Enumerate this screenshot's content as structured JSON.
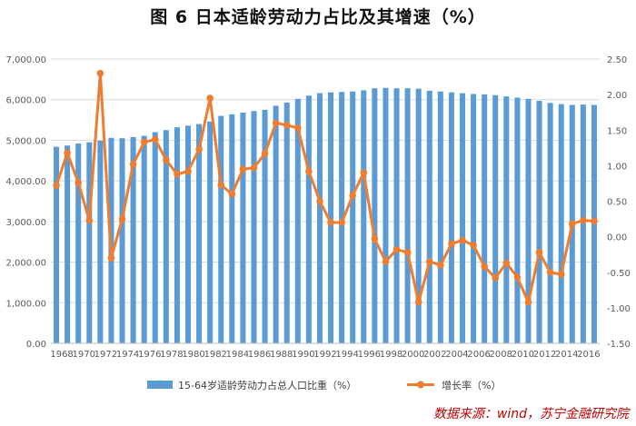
{
  "title": "图 6   日本适龄劳动力占比及其增速（%）",
  "source": "数据来源：wind，苏宁金融研究院",
  "colors": {
    "bar": "#5b9bd5",
    "line": "#ed7d31",
    "grid": "#d9d9d9",
    "axis_text": "#595959"
  },
  "chart_data": {
    "type": "bar+line",
    "x": [
      "1968",
      "1969",
      "1970",
      "1971",
      "1972",
      "1973",
      "1974",
      "1975",
      "1976",
      "1977",
      "1978",
      "1979",
      "1980",
      "1981",
      "1982",
      "1983",
      "1984",
      "1985",
      "1986",
      "1987",
      "1988",
      "1989",
      "1990",
      "1991",
      "1992",
      "1993",
      "1994",
      "1995",
      "1996",
      "1997",
      "1998",
      "1999",
      "2000",
      "2001",
      "2002",
      "2003",
      "2004",
      "2005",
      "2006",
      "2007",
      "2008",
      "2009",
      "2010",
      "2011",
      "2012",
      "2013",
      "2014",
      "2015",
      "2016",
      "2017"
    ],
    "x_tick_labels": [
      "1968",
      "1970",
      "1972",
      "1974",
      "1976",
      "1978",
      "1980",
      "1982",
      "1984",
      "1986",
      "1988",
      "1990",
      "1992",
      "1994",
      "1996",
      "1998",
      "2000",
      "2002",
      "2004",
      "2006",
      "2008",
      "2010",
      "2012",
      "2014",
      "2016"
    ],
    "series": [
      {
        "name": "15-64岁适龄劳动力占总人口比重（%）",
        "type": "bar",
        "axis": "left",
        "values": [
          4840,
          4870,
          4920,
          4950,
          4990,
          5060,
          5050,
          5080,
          5110,
          5200,
          5250,
          5320,
          5360,
          5400,
          5460,
          5600,
          5640,
          5680,
          5720,
          5750,
          5850,
          5930,
          6020,
          6100,
          6160,
          6180,
          6190,
          6200,
          6230,
          6280,
          6290,
          6280,
          6280,
          6270,
          6220,
          6200,
          6180,
          6160,
          6140,
          6130,
          6110,
          6080,
          6050,
          6020,
          5970,
          5920,
          5890,
          5870,
          5880,
          5870
        ]
      },
      {
        "name": "增长率（%）",
        "type": "line",
        "axis": "right",
        "values": [
          0.72,
          1.18,
          0.76,
          0.23,
          2.3,
          -0.3,
          0.25,
          1.02,
          1.33,
          1.37,
          1.08,
          0.88,
          0.92,
          1.23,
          1.95,
          0.73,
          0.6,
          0.95,
          0.97,
          1.17,
          1.6,
          1.57,
          1.53,
          0.92,
          0.5,
          0.2,
          0.2,
          0.58,
          0.9,
          -0.03,
          -0.35,
          -0.18,
          -0.22,
          -0.92,
          -0.35,
          -0.4,
          -0.1,
          -0.05,
          -0.12,
          -0.42,
          -0.58,
          -0.37,
          -0.57,
          -0.92,
          -0.22,
          -0.5,
          -0.53,
          0.18,
          0.23,
          0.22
        ]
      }
    ],
    "y_left": {
      "min": 0,
      "max": 7000,
      "ticks": [
        "0.00",
        "1,000.00",
        "2,000.00",
        "3,000.00",
        "4,000.00",
        "5,000.00",
        "6,000.00",
        "7,000.00"
      ]
    },
    "y_right": {
      "min": -1.5,
      "max": 2.5,
      "ticks": [
        "-1.50",
        "-1.00",
        "-0.50",
        "0.00",
        "0.50",
        "1.00",
        "1.50",
        "2.00",
        "2.50"
      ]
    },
    "grid": true,
    "legend_position": "bottom"
  }
}
